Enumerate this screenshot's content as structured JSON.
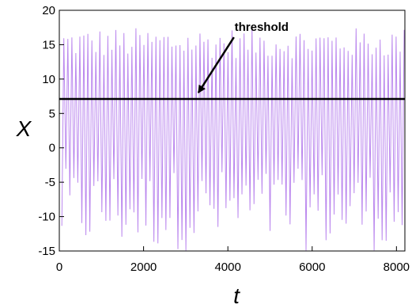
{
  "chart_data": {
    "type": "line",
    "title": "",
    "xlabel": "t",
    "ylabel": "X",
    "xlim": [
      0,
      8200
    ],
    "ylim": [
      -15,
      20
    ],
    "x_ticks": [
      0,
      2000,
      4000,
      6000,
      8000
    ],
    "x_tick_labels": [
      "0",
      "2000",
      "4000",
      "6000",
      "8000"
    ],
    "y_ticks": [
      -15,
      -10,
      -5,
      0,
      5,
      10,
      15,
      20
    ],
    "y_tick_labels": [
      "-15",
      "-10",
      "-5",
      "0",
      "5",
      "10",
      "15",
      "20"
    ],
    "grid": false,
    "legend": "none",
    "series": [
      {
        "color": "#bb88ee",
        "t_start": 60,
        "t_end": 8200,
        "oscillation_period": 95,
        "envelope": {
          "max_range": [
            13,
            17.5
          ],
          "min_range": [
            -15,
            -3
          ]
        }
      }
    ],
    "threshold": {
      "value": 7.1,
      "color": "#000000"
    },
    "annotations": [
      {
        "text": "threshold",
        "arrow_to": {
          "x": 3300,
          "y": 7.1
        },
        "text_at": {
          "x": 4800,
          "y": 17
        }
      }
    ]
  }
}
